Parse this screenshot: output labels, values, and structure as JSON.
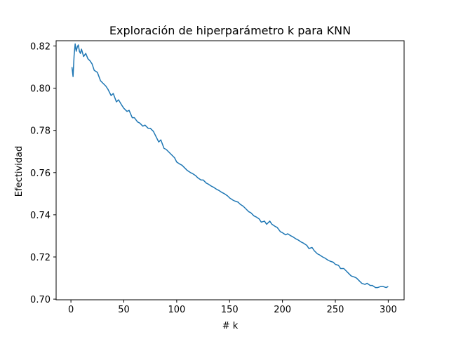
{
  "chart_data": {
    "type": "line",
    "title": "Exploración de hiperparámetro k para KNN",
    "xlabel": "# k",
    "ylabel": "Efectividad",
    "xlim": [
      -14,
      315
    ],
    "ylim": [
      0.6997,
      0.8225
    ],
    "x_ticks": [
      0,
      50,
      100,
      150,
      200,
      250,
      300
    ],
    "x_tick_labels": [
      "0",
      "50",
      "100",
      "150",
      "200",
      "250",
      "300"
    ],
    "y_ticks": [
      0.7,
      0.72,
      0.74,
      0.76,
      0.78,
      0.8,
      0.82
    ],
    "y_tick_labels": [
      "0.70",
      "0.72",
      "0.74",
      "0.76",
      "0.78",
      "0.80",
      "0.82"
    ],
    "grid": false,
    "series": [
      {
        "color": "#1f77b4",
        "x": [
          1,
          2,
          3,
          4,
          5,
          6,
          7,
          8,
          9,
          10,
          12,
          14,
          16,
          18,
          20,
          22,
          25,
          28,
          30,
          33,
          35,
          38,
          40,
          43,
          45,
          48,
          50,
          53,
          55,
          58,
          60,
          63,
          65,
          68,
          70,
          73,
          75,
          78,
          80,
          83,
          85,
          88,
          90,
          93,
          95,
          98,
          100,
          103,
          105,
          108,
          110,
          113,
          115,
          118,
          120,
          123,
          125,
          128,
          130,
          133,
          135,
          138,
          140,
          143,
          145,
          148,
          150,
          153,
          155,
          158,
          160,
          163,
          165,
          168,
          170,
          173,
          175,
          178,
          180,
          183,
          185,
          188,
          190,
          193,
          195,
          198,
          200,
          203,
          205,
          208,
          210,
          213,
          215,
          218,
          220,
          223,
          225,
          228,
          230,
          233,
          235,
          238,
          240,
          243,
          245,
          248,
          250,
          253,
          255,
          258,
          260,
          263,
          265,
          268,
          270,
          273,
          275,
          278,
          280,
          283,
          285,
          288,
          290,
          293,
          295,
          298,
          300
        ],
        "y": [
          0.81,
          0.8055,
          0.8155,
          0.821,
          0.8175,
          0.8195,
          0.8205,
          0.8175,
          0.8165,
          0.8185,
          0.815,
          0.8165,
          0.814,
          0.813,
          0.8115,
          0.8085,
          0.8075,
          0.8035,
          0.8025,
          0.801,
          0.7995,
          0.7965,
          0.7975,
          0.7935,
          0.7945,
          0.792,
          0.7905,
          0.789,
          0.7895,
          0.786,
          0.786,
          0.784,
          0.7835,
          0.782,
          0.7825,
          0.781,
          0.781,
          0.7795,
          0.7775,
          0.7745,
          0.7755,
          0.7715,
          0.771,
          0.7695,
          0.7685,
          0.767,
          0.765,
          0.764,
          0.7635,
          0.762,
          0.761,
          0.76,
          0.7595,
          0.7585,
          0.7575,
          0.7565,
          0.7565,
          0.755,
          0.7545,
          0.7535,
          0.753,
          0.752,
          0.7515,
          0.7505,
          0.75,
          0.749,
          0.748,
          0.747,
          0.7465,
          0.746,
          0.745,
          0.744,
          0.743,
          0.7415,
          0.741,
          0.7395,
          0.739,
          0.738,
          0.7365,
          0.737,
          0.7355,
          0.737,
          0.7355,
          0.7345,
          0.734,
          0.732,
          0.7315,
          0.7305,
          0.731,
          0.73,
          0.7295,
          0.7285,
          0.728,
          0.727,
          0.7265,
          0.7255,
          0.724,
          0.7245,
          0.723,
          0.7215,
          0.721,
          0.72,
          0.7195,
          0.7185,
          0.718,
          0.7175,
          0.7165,
          0.716,
          0.7145,
          0.7145,
          0.7135,
          0.712,
          0.711,
          0.7105,
          0.71,
          0.7085,
          0.7075,
          0.707,
          0.7075,
          0.7065,
          0.7065,
          0.7055,
          0.7055,
          0.706,
          0.706,
          0.7055,
          0.706
        ]
      }
    ]
  }
}
